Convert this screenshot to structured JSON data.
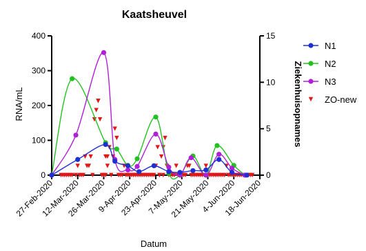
{
  "chart_data": {
    "type": "line",
    "title": "Kaatsheuvel",
    "xlabel": "Datum",
    "ylabel_left": "RNA/mL",
    "ylabel_right": "Ziekenhuisopnames",
    "x_tick_labels": [
      "27-Feb-2020",
      "12-Mar-2020",
      "26-Mar-2020",
      "9-Apr-2020",
      "23-Apr-2020",
      "7-May-2020",
      "21-May-2020",
      "4-Jun-2020",
      "18-Jun-2020"
    ],
    "xlim_days": [
      0,
      112
    ],
    "ylim_left": [
      0,
      400
    ],
    "ylim_right": [
      0,
      15
    ],
    "left_ticks": [
      0,
      100,
      200,
      300,
      400
    ],
    "right_ticks": [
      0,
      5,
      10,
      15
    ],
    "colors": {
      "N1": "#1f2fd1",
      "N2": "#22c122",
      "N3": "#b01fd6",
      "ZO-new": "#e01818"
    },
    "series": [
      {
        "name": "N1",
        "axis": "left",
        "marker": "circle",
        "x": [
          0,
          14,
          29,
          34,
          41,
          47,
          55,
          63,
          69,
          76,
          83,
          90,
          97,
          105
        ],
        "y": [
          0,
          45,
          88,
          40,
          27,
          10,
          27,
          10,
          8,
          13,
          15,
          45,
          8,
          0
        ]
      },
      {
        "name": "N2",
        "axis": "left",
        "marker": "circle",
        "x": [
          0,
          11,
          29,
          35,
          41,
          46,
          56,
          63,
          69,
          76,
          83,
          89,
          98,
          104
        ],
        "y": [
          0,
          277,
          93,
          75,
          28,
          47,
          167,
          5,
          0,
          55,
          0,
          85,
          28,
          0
        ]
      },
      {
        "name": "N3",
        "axis": "left",
        "marker": "circle",
        "x": [
          0,
          13,
          28,
          34,
          41,
          46,
          56,
          63,
          69,
          75,
          83,
          90,
          97,
          104
        ],
        "y": [
          0,
          115,
          352,
          45,
          15,
          25,
          118,
          23,
          0,
          50,
          0,
          60,
          20,
          0
        ]
      },
      {
        "name": "ZO-new",
        "axis": "right",
        "marker": "triangle-down",
        "x": [
          5,
          6,
          7,
          8,
          9,
          10,
          11,
          13,
          14,
          15,
          16,
          17,
          18,
          19,
          20,
          21,
          22,
          23,
          24,
          25,
          25,
          26,
          27,
          28,
          29,
          29,
          30,
          30,
          31,
          32,
          33,
          34,
          35,
          36,
          37,
          38,
          39,
          40,
          41,
          42,
          43,
          44,
          44,
          45,
          46,
          47,
          48,
          49,
          50,
          51,
          52,
          53,
          54,
          55,
          56,
          57,
          58,
          58,
          59,
          60,
          60,
          61,
          62,
          63,
          64,
          65,
          66,
          67,
          68,
          69,
          70,
          71,
          72,
          73,
          74,
          75,
          76,
          77,
          78,
          79,
          80,
          81,
          82,
          83,
          84,
          85,
          86,
          87,
          88,
          89,
          90,
          91,
          92,
          93,
          94,
          95,
          96,
          97,
          98,
          99,
          100,
          101,
          102,
          103,
          105,
          106,
          107,
          108
        ],
        "y": [
          0,
          0,
          0,
          0,
          0,
          0,
          0,
          0,
          1,
          0,
          0,
          0,
          2,
          1,
          1,
          2,
          0,
          6,
          7,
          8,
          8,
          6,
          0,
          0,
          0,
          2,
          2,
          1,
          3,
          0,
          2,
          5,
          4,
          0,
          0,
          0,
          1,
          0,
          0,
          0,
          0,
          0,
          0,
          0,
          0,
          0,
          0,
          0,
          0,
          0,
          0,
          0,
          0,
          0,
          1,
          3,
          0,
          0,
          2,
          0,
          3,
          4,
          1,
          0,
          0,
          0,
          0,
          1,
          0,
          0,
          0,
          0,
          0,
          1,
          1,
          0,
          0,
          0,
          0,
          0,
          0,
          0,
          0,
          1,
          0,
          0,
          0,
          0,
          0,
          0,
          0,
          0,
          0,
          0,
          1,
          0,
          0,
          0,
          0,
          0,
          0,
          0,
          0,
          0,
          0,
          0,
          0,
          0
        ]
      }
    ],
    "legend_position": "right",
    "grid": false
  }
}
